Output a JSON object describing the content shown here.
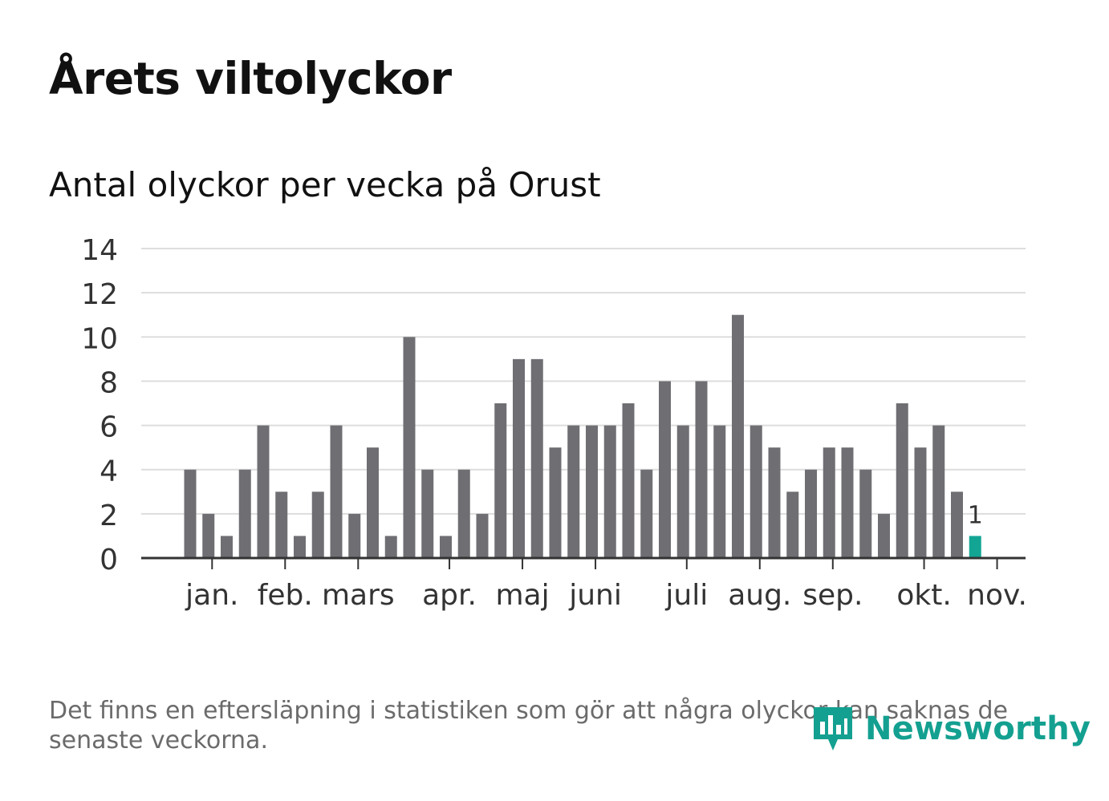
{
  "title": "Årets viltolyckor",
  "subtitle": "Antal olyckor per vecka på Orust",
  "footnote": "Det finns en eftersläpning i statistiken som gör att några olyckor kan saknas de senaste veckorna.",
  "logo": {
    "text": "Newsworthy",
    "icon": "newsworthy-chart-icon"
  },
  "colors": {
    "bar": "#6f6e73",
    "highlight": "#13a594",
    "grid": "#dddddd",
    "axis": "#333333",
    "text": "#333333"
  },
  "chart_data": {
    "type": "bar",
    "title": "Antal olyckor per vecka på Orust",
    "xlabel": "",
    "ylabel": "",
    "ylim": [
      0,
      14
    ],
    "yticks": [
      "0",
      "2",
      "4",
      "6",
      "8",
      "10",
      "12",
      "14"
    ],
    "month_labels": [
      "jan.",
      "feb.",
      "mars",
      "apr.",
      "maj",
      "juni",
      "juli",
      "aug.",
      "sep.",
      "okt.",
      "nov."
    ],
    "month_tick_week_positions": [
      1.2,
      5.2,
      9.2,
      14.2,
      18.2,
      22.2,
      27.2,
      31.2,
      35.2,
      40.2,
      44.2
    ],
    "values": [
      4,
      2,
      1,
      4,
      6,
      3,
      1,
      3,
      6,
      2,
      5,
      1,
      10,
      4,
      1,
      4,
      2,
      7,
      9,
      9,
      5,
      6,
      6,
      6,
      7,
      4,
      8,
      6,
      8,
      6,
      11,
      6,
      5,
      3,
      4,
      5,
      5,
      4,
      2,
      7,
      5,
      6,
      3,
      1
    ],
    "highlight_index": 43,
    "highlight_label": "1"
  }
}
